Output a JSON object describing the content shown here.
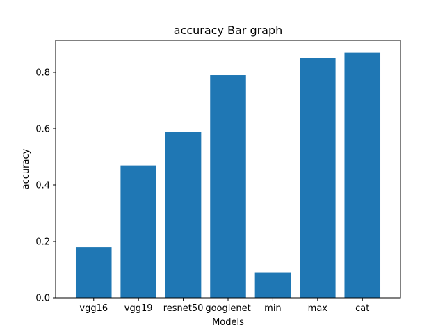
{
  "chart_data": {
    "type": "bar",
    "title": "accuracy Bar graph",
    "xlabel": "Models",
    "ylabel": "accuracy",
    "categories": [
      "vgg16",
      "vgg19",
      "resnet50",
      "googlenet",
      "min",
      "max",
      "cat"
    ],
    "values": [
      0.18,
      0.47,
      0.59,
      0.79,
      0.09,
      0.85,
      0.87
    ],
    "ylim": [
      0,
      0.9135
    ],
    "yticks": [
      0.0,
      0.2,
      0.4,
      0.6,
      0.8
    ],
    "ytick_labels": [
      "0.0",
      "0.2",
      "0.4",
      "0.6",
      "0.8"
    ],
    "grid": false,
    "bar_color": "#1f77b4"
  }
}
